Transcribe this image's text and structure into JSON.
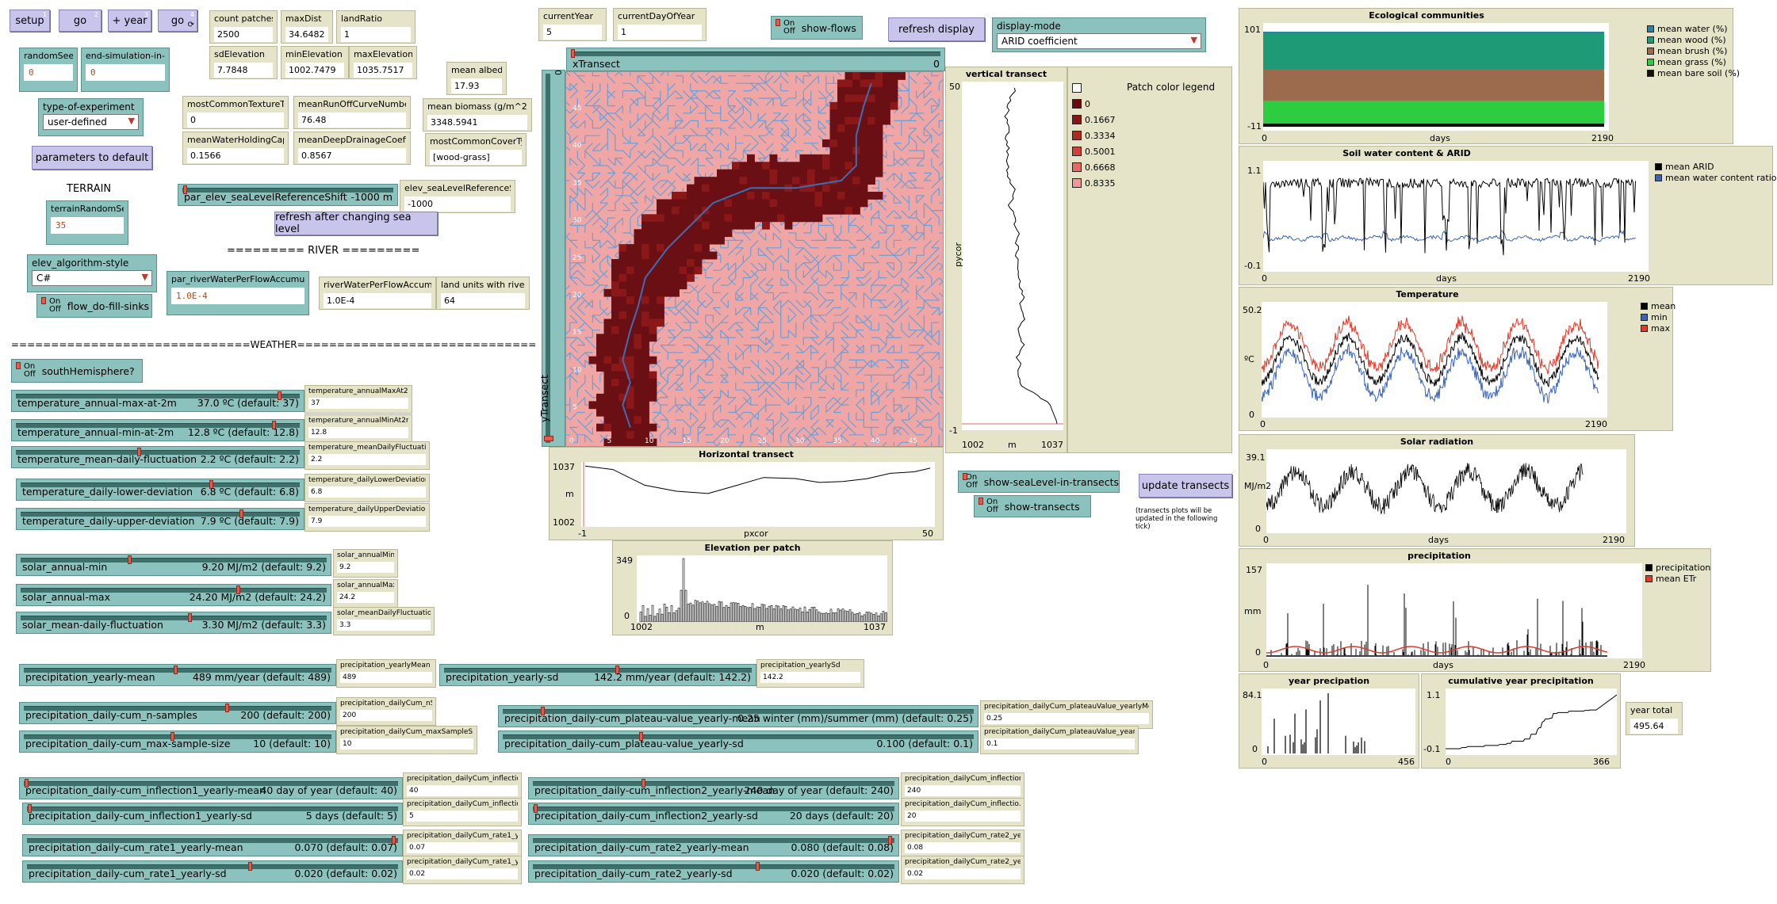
{
  "buttons": {
    "setup": {
      "label": "setup",
      "key": "1"
    },
    "go": {
      "label": "go",
      "key": "2"
    },
    "plus_year": {
      "label": "+ year",
      "key": "3"
    },
    "go_forever": {
      "label": "go",
      "key": "4"
    },
    "parameters_default": {
      "label": "parameters to default"
    },
    "refresh_sea": {
      "label": "refresh after changing sea level"
    },
    "refresh_display": {
      "label": "refresh display"
    },
    "update_transects": {
      "label": "update transects"
    }
  },
  "inputs": {
    "randomSeed": {
      "label": "randomSeed",
      "value": "0"
    },
    "end_tick": {
      "label": "end-simulation-in-tick",
      "value": "0"
    },
    "terrainRandomSeed": {
      "label": "terrainRandomSeed",
      "value": "35"
    },
    "riverWater": {
      "label": "par_riverWaterPerFlowAccumulation",
      "value": "1.0E-4"
    }
  },
  "choosers": {
    "experiment": {
      "label": "type-of-experiment",
      "value": "user-defined"
    },
    "elev_algorithm": {
      "label": "elev_algorithm-style",
      "value": "C#"
    },
    "display_mode": {
      "label": "display-mode",
      "value": "ARID coefficient"
    }
  },
  "switches": {
    "on": "On",
    "off": "Off",
    "flow_fill": "flow_do-fill-sinks",
    "south": "southHemisphere?",
    "flows": "show-flows",
    "sealevel": "show-seaLevel-in-transects",
    "transects": "show-transects"
  },
  "monitors": {
    "count_patches": {
      "label": "count patches",
      "value": "2500"
    },
    "maxDist": {
      "label": "maxDist",
      "value": "34.6482"
    },
    "landRatio": {
      "label": "landRatio",
      "value": "1"
    },
    "sdElevation": {
      "label": "sdElevation",
      "value": "7.7848"
    },
    "minElevation": {
      "label": "minElevation",
      "value": "1002.7479"
    },
    "maxElevation": {
      "label": "maxElevation",
      "value": "1035.7517"
    },
    "mean_albedo": {
      "label": "mean albedo",
      "value": "17.93"
    },
    "mostCommonTexture": {
      "label": "mostCommonTextureType",
      "value": "0"
    },
    "meanRunOff": {
      "label": "meanRunOffCurveNumber",
      "value": "76.48"
    },
    "meanBiomass": {
      "label": "mean biomass (g/m^2)",
      "value": "3348.5941"
    },
    "meanWaterHolding": {
      "label": "meanWaterHoldingCapa...",
      "value": "0.1566"
    },
    "meanDeepDrainage": {
      "label": "meanDeepDrainageCoefficient",
      "value": "0.8567"
    },
    "mostCommonCover": {
      "label": "mostCommonCoverType",
      "value": "[wood-grass]"
    },
    "currentYear": {
      "label": "currentYear",
      "value": "5"
    },
    "currentDay": {
      "label": "currentDayOfYear",
      "value": "1"
    },
    "elev_sea_mon": {
      "label": "elev_seaLevelReferenceShift",
      "value": "-1000"
    },
    "riverWaterMon": {
      "label": "riverWaterPerFlowAccumulation",
      "value": "1.0E-4"
    },
    "landRiver": {
      "label": "land units with river",
      "value": "64"
    },
    "yearTotal": {
      "label": "year total",
      "value": "495.64"
    }
  },
  "sections": {
    "terrain": "TERRAIN",
    "river": "========= RIVER =========",
    "weather": "==============================WEATHER=============================="
  },
  "sliders": [
    {
      "id": "elev_sea",
      "name": "par_elev_seaLevelReferenceShift",
      "value": "-1000 m",
      "pos": 0.0
    },
    {
      "id": "tmax",
      "name": "temperature_annual-max-at-2m",
      "value": "37.0 ºC  (default: 37)",
      "pos": 0.93,
      "mon_label": "temperature_annualMaxAt2m",
      "mon_value": "37"
    },
    {
      "id": "tmin",
      "name": "temperature_annual-min-at-2m",
      "value": "12.8 ºC  (default: 12.8)",
      "pos": 0.91,
      "mon_label": "temperature_annualMinAt2m",
      "mon_value": "12.8"
    },
    {
      "id": "tfluct",
      "name": "temperature_mean-daily-fluctuation",
      "value": "2.2 ºC  (default: 2.2)",
      "pos": 0.43,
      "mon_label": "temperature_meanDailyFluctuation",
      "mon_value": "2.2"
    },
    {
      "id": "tlow",
      "name": "temperature_daily-lower-deviation",
      "value": "6.8 ºC  (default: 6.8)",
      "pos": 0.68,
      "mon_label": "temperature_dailyLowerDeviation",
      "mon_value": "6.8"
    },
    {
      "id": "tup",
      "name": "temperature_daily-upper-deviation",
      "value": "7.9 ºC  (default: 7.9)",
      "pos": 0.79,
      "mon_label": "temperature_dailyUpperDeviation",
      "mon_value": "7.9"
    },
    {
      "id": "smin",
      "name": "solar_annual-min",
      "value": "9.20 MJ/m2  (default: 9.2)",
      "pos": 0.35,
      "mon_label": "solar_annualMin",
      "mon_value": "9.2"
    },
    {
      "id": "smax",
      "name": "solar_annual-max",
      "value": "24.20 MJ/m2  (default: 24.2)",
      "pos": 0.71,
      "mon_label": "solar_annualMax",
      "mon_value": "24.2"
    },
    {
      "id": "sfl",
      "name": "solar_mean-daily-fluctuation",
      "value": "3.30 MJ/m2  (default: 3.3)",
      "pos": 0.55,
      "mon_label": "solar_meanDailyFluctuation",
      "mon_value": "3.3"
    },
    {
      "id": "pym",
      "name": "precipitation_yearly-mean",
      "value": "489 mm/year  (default: 489)",
      "pos": 0.49,
      "mon_label": "precipitation_yearlyMean",
      "mon_value": "489"
    },
    {
      "id": "pysd",
      "name": "precipitation_yearly-sd",
      "value": "142.2 mm/year  (default: 142.2)",
      "pos": 0.56,
      "mon_label": "precipitation_yearlySd",
      "mon_value": "142.2"
    },
    {
      "id": "pns",
      "name": "precipitation_daily-cum_n-samples",
      "value": "200  (default: 200)",
      "pos": 0.66,
      "mon_label": "precipitation_dailyCum_nSamples",
      "mon_value": "200"
    },
    {
      "id": "pmss",
      "name": "precipitation_daily-cum_max-sample-size",
      "value": "10  (default: 10)",
      "pos": 0.48,
      "mon_label": "precipitation_dailyCum_maxSampleSize",
      "mon_value": "10"
    },
    {
      "id": "ppm",
      "name": "precipitation_daily-cum_plateau-value_yearly-mean",
      "value": "0.25 winter (mm)/summer (mm)  (default: 0.25)",
      "pos": 0.08,
      "mon_label": "precipitation_dailyCum_plateauValue_yearlyMean",
      "mon_value": "0.25"
    },
    {
      "id": "ppsd",
      "name": "precipitation_daily-cum_plateau-value_yearly-sd",
      "value": "0.100  (default: 0.1)",
      "pos": 0.29,
      "mon_label": "precipitation_dailyCum_plateauValue_yearlySd",
      "mon_value": "0.1"
    },
    {
      "id": "pi1m",
      "name": "precipitation_daily-cum_inflection1_yearly-mean",
      "value": "40 day of year  (default: 40)",
      "pos": 0.0,
      "mon_label": "precipitation_dailyCum_inflection...",
      "mon_value": "40"
    },
    {
      "id": "pi1sd",
      "name": "precipitation_daily-cum_inflection1_yearly-sd",
      "value": "5 days  (default: 5)",
      "pos": 0.0,
      "mon_label": "precipitation_dailyCum_inflectio...",
      "mon_value": "5"
    },
    {
      "id": "pr1m",
      "name": "precipitation_daily-cum_rate1_yearly-mean",
      "value": "0.070  (default: 0.07)",
      "pos": 0.99,
      "mon_label": "precipitation_dailyCum_rate1_ye...",
      "mon_value": "0.07"
    },
    {
      "id": "pr1sd",
      "name": "precipitation_daily-cum_rate1_yearly-sd",
      "value": "0.020  (default: 0.02)",
      "pos": 0.6,
      "mon_label": "precipitation_dailyCum_rate1_ye...",
      "mon_value": "0.02"
    },
    {
      "id": "pi2m",
      "name": "precipitation_daily-cum_inflection2_yearly-mean",
      "value": "240 day of year  (default: 240)",
      "pos": 0.3,
      "mon_label": "precipitation_dailyCum_inflection...",
      "mon_value": "240"
    },
    {
      "id": "pi2sd",
      "name": "precipitation_daily-cum_inflection2_yearly-sd",
      "value": "20 days  (default: 20)",
      "pos": 0.0,
      "mon_label": "precipitation_dailyCum_inflectio...",
      "mon_value": "20"
    },
    {
      "id": "pr2m",
      "name": "precipitation_daily-cum_rate2_yearly-mean",
      "value": "0.080  (default: 0.08)",
      "pos": 0.99,
      "mon_label": "precipitation_dailyCum_rate2_ye...",
      "mon_value": "0.08"
    },
    {
      "id": "pr2sd",
      "name": "precipitation_daily-cum_rate2_yearly-sd",
      "value": "0.020  (default: 0.02)",
      "pos": 0.62,
      "mon_label": "precipitation_dailyCum_rate2_ye...",
      "mon_value": "0.02"
    }
  ],
  "view": {
    "xTransect": "xTransect",
    "xTransect_val": "0",
    "yTransect": "yTransect",
    "yTransect_val": "0",
    "ticks_x": [
      "0",
      "5",
      "10",
      "15",
      "20",
      "25",
      "30",
      "35",
      "40",
      "45"
    ],
    "ticks_y": [
      "45",
      "40",
      "35",
      "30",
      "25",
      "20",
      "15",
      "10",
      "5"
    ],
    "colors": {
      "background": "#f0a6a4",
      "flow": "#6aa0d8",
      "dark": "#6a1014",
      "river": "#3a6fb8"
    }
  },
  "legend": {
    "title": "Patch color legend",
    "items": [
      {
        "label": "",
        "color": "#ffffff"
      },
      {
        "label": "0",
        "color": "#6a0a0a"
      },
      {
        "label": "0.1667",
        "color": "#8a1414"
      },
      {
        "label": "0.3334",
        "color": "#b02a22"
      },
      {
        "label": "0.5001",
        "color": "#d04038"
      },
      {
        "label": "0.6668",
        "color": "#e46a64"
      },
      {
        "label": "0.8335",
        "color": "#f09898"
      }
    ]
  },
  "plots": {
    "vertical": {
      "title": "vertical transect",
      "ymax": "50",
      "ymin": "-1",
      "xmin": "1002",
      "xmax": "1037",
      "xlabel": "m",
      "ylabel": "pycor"
    },
    "horizontal": {
      "title": "Horizontal transect",
      "ymax": "1037",
      "ymin": "1002",
      "xmin": "-1",
      "xmax": "50",
      "xlabel": "pxcor",
      "ylabel": "m"
    },
    "elevation": {
      "title": "Elevation per patch",
      "ymax": "349",
      "ymin": "0",
      "xmin": "1002",
      "xmax": "1037",
      "xlabel": "m"
    },
    "eco": {
      "title": "Ecological communities",
      "ymax": "101",
      "ymin": "-11",
      "xmin": "0",
      "xmax": "2190",
      "xlabel": "days",
      "legend": [
        "mean water (%)",
        "mean wood (%)",
        "mean brush (%)",
        "mean grass (%)",
        "mean bare soil (%)"
      ],
      "colors": [
        "#2e7fa3",
        "#1f9a77",
        "#9c6b4e",
        "#2ecc40",
        "#111111"
      ]
    },
    "soil": {
      "title": "Soil water content & ARID",
      "ymax": "1.1",
      "ymin": "-0.1",
      "xmin": "0",
      "xmax": "2190",
      "xlabel": "days",
      "legend": [
        "mean ARID",
        "mean water content ratio"
      ],
      "colors": [
        "#000000",
        "#3a64b8"
      ]
    },
    "temp": {
      "title": "Temperature",
      "ymax": "50.2",
      "ymin": "0",
      "xmin": "0",
      "xmax": "2190",
      "ylabel": "ºC",
      "legend": [
        "mean",
        "min",
        "max"
      ],
      "colors": [
        "#000000",
        "#3a64b8",
        "#e03a2a"
      ]
    },
    "solar": {
      "title": "Solar radiation",
      "ymax": "39.1",
      "ymin": "0",
      "xmin": "0",
      "xmax": "2190",
      "xlabel": "days",
      "ylabel": "MJ/m2"
    },
    "precip": {
      "title": "precipitation",
      "ymax": "157",
      "ymin": "0",
      "xmin": "0",
      "xmax": "2190",
      "xlabel": "days",
      "ylabel": "mm",
      "legend": [
        "precipitation",
        "mean ETr"
      ],
      "colors": [
        "#000000",
        "#e03a2a"
      ]
    },
    "yearp": {
      "title": "year precipation",
      "ymax": "84.1",
      "ymin": "0",
      "xmin": "0",
      "xmax": "456"
    },
    "cumyear": {
      "title": "cumulative year precipitation",
      "ymax": "1.1",
      "ymin": "-0.1",
      "xmin": "0",
      "xmax": "366"
    }
  },
  "note_transects": "(transects plots will be updated in the following tick)"
}
